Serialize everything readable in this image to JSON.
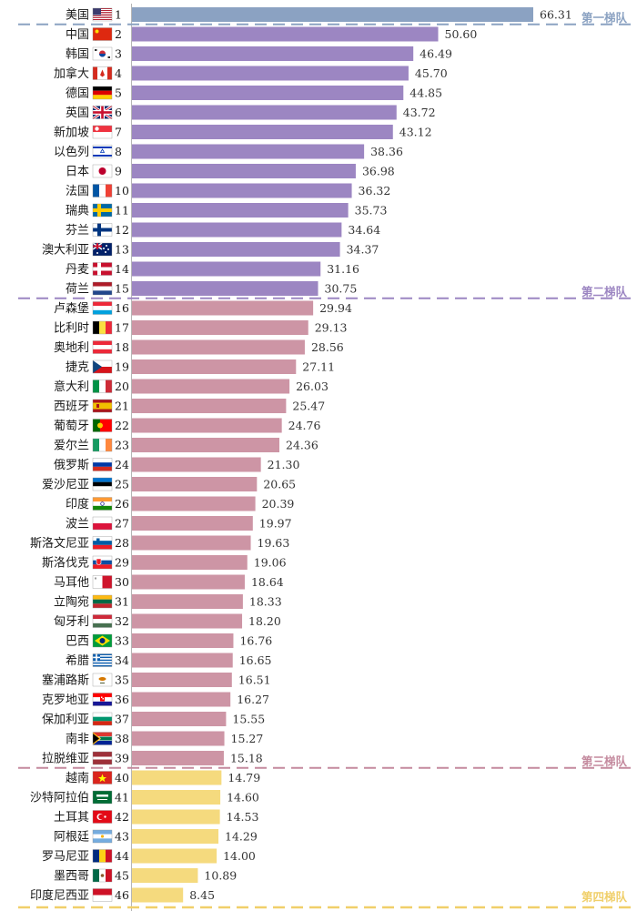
{
  "chart_data": {
    "type": "bar",
    "orientation": "horizontal",
    "xlim": [
      0,
      66.31
    ],
    "tier_labels": [
      {
        "label": "第一梯队",
        "after_rank": 1,
        "color": "#8ba2c2"
      },
      {
        "label": "第二梯队",
        "after_rank": 15,
        "color": "#9c86c2"
      },
      {
        "label": "第三梯队",
        "after_rank": 39,
        "color": "#c48a9e"
      },
      {
        "label": "第四梯队",
        "after_rank": 46,
        "color": "#f0cf6a"
      }
    ],
    "series": [
      {
        "tier": 1,
        "color": "#8ba2c2",
        "categories": [
          "美国"
        ],
        "ranks": [
          1
        ],
        "values": [
          66.31
        ]
      },
      {
        "tier": 2,
        "color": "#9c86c2",
        "categories": [
          "中国",
          "韩国",
          "加拿大",
          "德国",
          "英国",
          "新加坡",
          "以色列",
          "日本",
          "法国",
          "瑞典",
          "芬兰",
          "澳大利亚",
          "丹麦",
          "荷兰"
        ],
        "ranks": [
          2,
          3,
          4,
          5,
          6,
          7,
          8,
          9,
          10,
          11,
          12,
          13,
          14,
          15
        ],
        "values": [
          50.6,
          46.49,
          45.7,
          44.85,
          43.72,
          43.12,
          38.36,
          36.98,
          36.32,
          35.73,
          34.64,
          34.37,
          31.16,
          30.75
        ]
      },
      {
        "tier": 3,
        "color": "#cd95a5",
        "categories": [
          "卢森堡",
          "比利时",
          "奥地利",
          "捷克",
          "意大利",
          "西班牙",
          "葡萄牙",
          "爱尔兰",
          "俄罗斯",
          "爱沙尼亚",
          "印度",
          "波兰",
          "斯洛文尼亚",
          "斯洛伐克",
          "马耳他",
          "立陶宛",
          "匈牙利",
          "巴西",
          "希腊",
          "塞浦路斯",
          "克罗地亚",
          "保加利亚",
          "南非",
          "拉脱维亚"
        ],
        "ranks": [
          16,
          17,
          18,
          19,
          20,
          21,
          22,
          23,
          24,
          25,
          26,
          27,
          28,
          29,
          30,
          31,
          32,
          33,
          34,
          35,
          36,
          37,
          38,
          39
        ],
        "values": [
          29.94,
          29.13,
          28.56,
          27.11,
          26.03,
          25.47,
          24.76,
          24.36,
          21.3,
          20.65,
          20.39,
          19.97,
          19.63,
          19.06,
          18.64,
          18.33,
          18.2,
          16.76,
          16.65,
          16.51,
          16.27,
          15.55,
          15.27,
          15.18
        ]
      },
      {
        "tier": 4,
        "color": "#f5da7e",
        "categories": [
          "越南",
          "沙特阿拉伯",
          "土耳其",
          "阿根廷",
          "罗马尼亚",
          "墨西哥",
          "印度尼西亚"
        ],
        "ranks": [
          40,
          41,
          42,
          43,
          44,
          45,
          46
        ],
        "values": [
          14.79,
          14.6,
          14.53,
          14.29,
          14.0,
          10.89,
          8.45
        ]
      }
    ],
    "flags": {
      "美国": "flag-us",
      "中国": "flag-cn",
      "韩国": "flag-kr",
      "加拿大": "flag-ca",
      "德国": "flag-de",
      "英国": "flag-gb",
      "新加坡": "flag-sg",
      "以色列": "flag-il",
      "日本": "flag-jp",
      "法国": "flag-fr",
      "瑞典": "flag-se",
      "芬兰": "flag-fi",
      "澳大利亚": "flag-au",
      "丹麦": "flag-dk",
      "荷兰": "flag-nl",
      "卢森堡": "flag-lu",
      "比利时": "flag-be",
      "奥地利": "flag-at",
      "捷克": "flag-cz",
      "意大利": "flag-it",
      "西班牙": "flag-es",
      "葡萄牙": "flag-pt",
      "爱尔兰": "flag-ie",
      "俄罗斯": "flag-ru",
      "爱沙尼亚": "flag-ee",
      "印度": "flag-in",
      "波兰": "flag-pl",
      "斯洛文尼亚": "flag-si",
      "斯洛伐克": "flag-sk",
      "马耳他": "flag-mt",
      "立陶宛": "flag-lt",
      "匈牙利": "flag-hu",
      "巴西": "flag-br",
      "希腊": "flag-gr",
      "塞浦路斯": "flag-cy",
      "克罗地亚": "flag-hr",
      "保加利亚": "flag-bg",
      "南非": "flag-za",
      "拉脱维亚": "flag-lv",
      "越南": "flag-vn",
      "沙特阿拉伯": "flag-sa",
      "土耳其": "flag-tr",
      "阿根廷": "flag-ar",
      "罗马尼亚": "flag-ro",
      "墨西哥": "flag-mx",
      "印度尼西亚": "flag-id"
    }
  }
}
